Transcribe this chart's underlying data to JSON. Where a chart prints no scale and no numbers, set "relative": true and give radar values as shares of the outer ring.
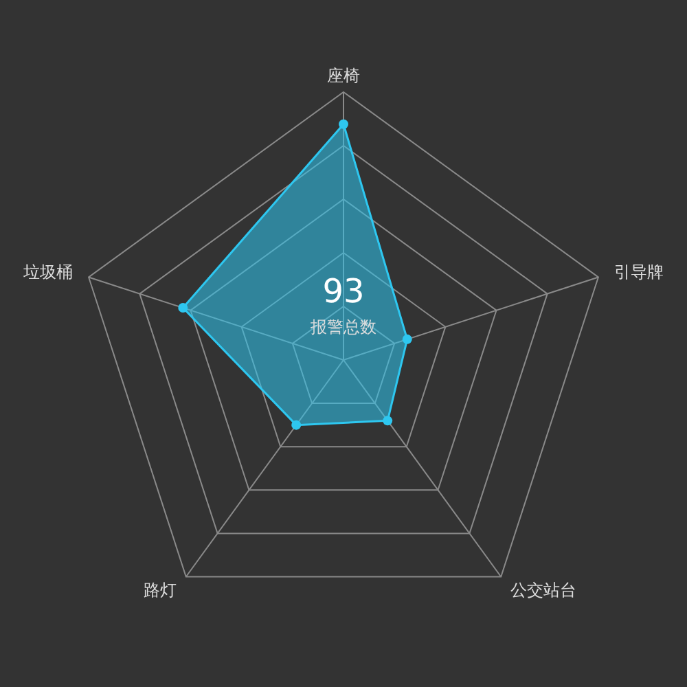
{
  "chart_data": {
    "type": "radar",
    "relative": true,
    "grid": true,
    "marker": "circle",
    "categories": [
      "座椅",
      "引导牌",
      "公交站台",
      "路灯",
      "垃圾桶"
    ],
    "series": [
      {
        "color": "#2ec7f0",
        "values": [
          0.88,
          0.25,
          0.28,
          0.3,
          0.63
        ]
      }
    ],
    "annotations": [
      "93",
      "报警总数"
    ]
  }
}
